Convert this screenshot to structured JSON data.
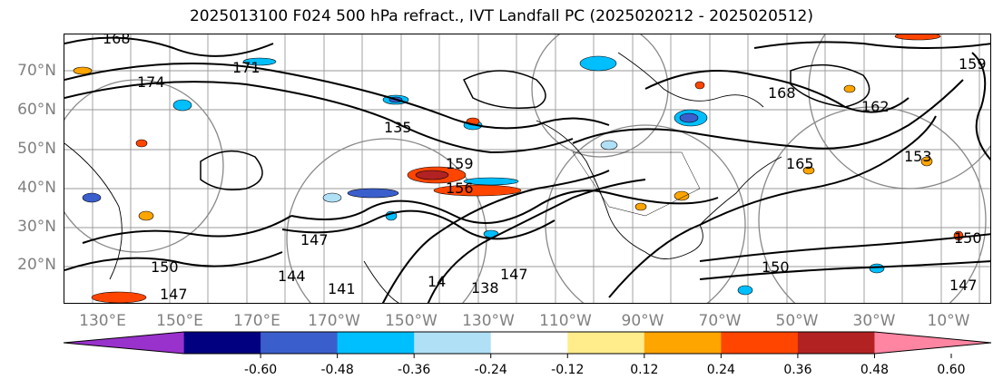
{
  "title": "2025013100 F024 500 hPa refract., IVT Landfall PC (2025020212 - 2025020512)",
  "lat_labels": [
    "70°N",
    "60°N",
    "50°N",
    "40°N",
    "30°N",
    "20°N"
  ],
  "lon_labels": [
    "130°E",
    "150°E",
    "170°E",
    "170°W",
    "150°W",
    "130°W",
    "110°W",
    "90°W",
    "70°W",
    "50°W",
    "30°W",
    "10°W"
  ],
  "contour_labels": [
    "168",
    "174",
    "171",
    "159",
    "156",
    "147",
    "144",
    "141",
    "138",
    "135",
    "162",
    "165",
    "153",
    "150",
    "147",
    "14",
    "147",
    "150",
    "159",
    "150",
    "147",
    "168"
  ],
  "colorbar": {
    "colors": [
      "#9932cc",
      "#000080",
      "#3a5fcd",
      "#00bfff",
      "#b0e0f6",
      "#ffffff",
      "#ffec8b",
      "#ffa500",
      "#ff4500",
      "#b22222",
      "#ff85a2"
    ],
    "tick_labels": [
      "-0.60",
      "-0.48",
      "-0.36",
      "-0.24",
      "-0.12",
      "0.12",
      "0.24",
      "0.36",
      "0.48",
      "0.60"
    ]
  }
}
